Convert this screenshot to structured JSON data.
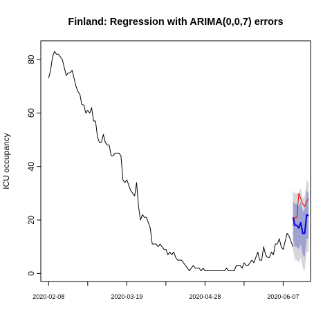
{
  "chart_data": {
    "type": "line",
    "title": "Finland: Regression with ARIMA(0,0,7) errors",
    "xlabel": "",
    "ylabel": "ICU occupancy",
    "x_range": [
      "2020-02-04",
      "2020-06-21"
    ],
    "ylim": [
      -3,
      87
    ],
    "x_ticks": [
      "2020-02-08",
      "2020-03-19",
      "2020-04-28",
      "2020-06-07"
    ],
    "x_minor_ticks": [
      "2020-02-28",
      "2020-04-08",
      "2020-05-18"
    ],
    "y_ticks": [
      0,
      20,
      40,
      60,
      80
    ],
    "grid": false,
    "series": [
      {
        "role": "observed",
        "color": "#000000",
        "x": [
          "2020-02-08",
          "2020-02-09",
          "2020-02-10",
          "2020-02-11",
          "2020-02-12",
          "2020-02-13",
          "2020-02-14",
          "2020-02-15",
          "2020-02-16",
          "2020-02-17",
          "2020-02-18",
          "2020-02-19",
          "2020-02-20",
          "2020-02-21",
          "2020-02-22",
          "2020-02-23",
          "2020-02-24",
          "2020-02-25",
          "2020-02-26",
          "2020-02-27",
          "2020-02-28",
          "2020-02-29",
          "2020-03-01",
          "2020-03-02",
          "2020-03-03",
          "2020-03-04",
          "2020-03-05",
          "2020-03-06",
          "2020-03-07",
          "2020-03-08",
          "2020-03-09",
          "2020-03-10",
          "2020-03-11",
          "2020-03-12",
          "2020-03-13",
          "2020-03-14",
          "2020-03-15",
          "2020-03-16",
          "2020-03-17",
          "2020-03-18",
          "2020-03-19",
          "2020-03-20",
          "2020-03-21",
          "2020-03-22",
          "2020-03-23",
          "2020-03-24",
          "2020-03-25",
          "2020-03-26",
          "2020-03-27",
          "2020-03-28",
          "2020-03-29",
          "2020-03-30",
          "2020-03-31",
          "2020-04-01",
          "2020-04-02",
          "2020-04-03",
          "2020-04-04",
          "2020-04-05",
          "2020-04-06",
          "2020-04-07",
          "2020-04-08",
          "2020-04-09",
          "2020-04-10",
          "2020-04-11",
          "2020-04-12",
          "2020-04-13",
          "2020-04-14",
          "2020-04-15",
          "2020-04-16",
          "2020-04-17",
          "2020-04-18",
          "2020-04-19",
          "2020-04-20",
          "2020-04-21",
          "2020-04-22",
          "2020-04-23",
          "2020-04-24",
          "2020-04-25",
          "2020-04-26",
          "2020-04-27",
          "2020-04-28",
          "2020-04-29",
          "2020-04-30",
          "2020-05-01",
          "2020-05-02",
          "2020-05-03",
          "2020-05-04",
          "2020-05-05",
          "2020-05-06",
          "2020-05-07",
          "2020-05-08",
          "2020-05-09",
          "2020-05-10",
          "2020-05-11",
          "2020-05-12",
          "2020-05-13",
          "2020-05-14",
          "2020-05-15",
          "2020-05-16",
          "2020-05-17",
          "2020-05-18",
          "2020-05-19",
          "2020-05-20",
          "2020-05-21",
          "2020-05-22",
          "2020-05-23",
          "2020-05-24",
          "2020-05-25",
          "2020-05-26",
          "2020-05-27",
          "2020-05-28",
          "2020-05-29",
          "2020-05-30",
          "2020-05-31",
          "2020-06-01",
          "2020-06-02",
          "2020-06-03",
          "2020-06-04",
          "2020-06-05",
          "2020-06-06",
          "2020-06-07",
          "2020-06-08",
          "2020-06-09",
          "2020-06-10",
          "2020-06-11",
          "2020-06-12"
        ],
        "y": [
          73,
          76,
          81,
          83,
          82,
          82,
          81,
          80,
          77,
          74,
          75,
          75,
          76,
          73,
          70,
          68,
          67,
          63,
          63,
          60,
          61,
          60,
          62,
          57,
          57,
          51,
          49,
          49,
          52,
          49,
          48,
          48,
          44,
          44,
          45,
          45,
          45,
          44,
          35,
          34,
          35,
          33,
          31,
          30,
          29,
          34,
          25,
          20,
          22,
          21,
          21,
          19,
          17,
          11,
          11,
          11,
          10,
          11,
          10,
          9,
          9,
          7,
          8,
          7,
          8,
          6,
          5,
          5,
          5,
          4,
          3,
          2,
          1,
          2,
          3,
          2,
          2,
          2,
          1,
          2,
          1,
          1,
          1,
          1,
          1,
          1,
          1,
          1,
          1,
          1,
          1,
          2,
          1,
          1,
          1,
          1,
          3,
          3,
          3,
          2,
          4,
          3,
          3,
          4,
          5,
          4,
          6,
          8,
          5,
          5,
          10,
          7,
          6,
          6,
          8,
          7,
          11,
          11,
          13,
          10,
          9,
          12,
          15,
          14,
          12,
          10
        ]
      },
      {
        "role": "actual (test period)",
        "color": "#ee0000",
        "x": [
          "2020-06-12",
          "2020-06-13",
          "2020-06-14",
          "2020-06-15",
          "2020-06-16",
          "2020-06-17",
          "2020-06-18",
          "2020-06-19",
          "2020-06-20"
        ],
        "y": [
          18,
          21,
          21,
          30,
          28,
          26,
          25,
          27,
          28
        ]
      },
      {
        "role": "point forecast",
        "color": "#0000ee",
        "x": [
          "2020-06-12",
          "2020-06-13",
          "2020-06-14",
          "2020-06-15",
          "2020-06-16",
          "2020-06-17",
          "2020-06-18",
          "2020-06-19",
          "2020-06-20"
        ],
        "y": [
          21,
          18,
          18,
          17,
          19,
          15,
          15,
          22,
          21.5
        ]
      },
      {
        "role": "80% prediction interval",
        "color": "#a0a3cf",
        "x": [
          "2020-06-12",
          "2020-06-13",
          "2020-06-14",
          "2020-06-15",
          "2020-06-16",
          "2020-06-17",
          "2020-06-18",
          "2020-06-19",
          "2020-06-20"
        ],
        "lower": [
          13,
          10,
          10,
          9,
          11,
          7,
          6,
          13,
          13
        ],
        "upper": [
          27,
          26,
          26,
          25,
          27,
          23,
          24,
          31,
          30
        ]
      },
      {
        "role": "95% prediction interval",
        "color": "#d6d6dd",
        "x": [
          "2020-06-12",
          "2020-06-13",
          "2020-06-14",
          "2020-06-15",
          "2020-06-16",
          "2020-06-17",
          "2020-06-18",
          "2020-06-19",
          "2020-06-20"
        ],
        "lower": [
          9,
          5,
          5,
          4,
          6,
          2,
          1,
          8,
          8
        ],
        "upper": [
          31,
          30,
          30,
          30,
          32,
          28,
          29,
          35,
          34
        ]
      }
    ]
  }
}
